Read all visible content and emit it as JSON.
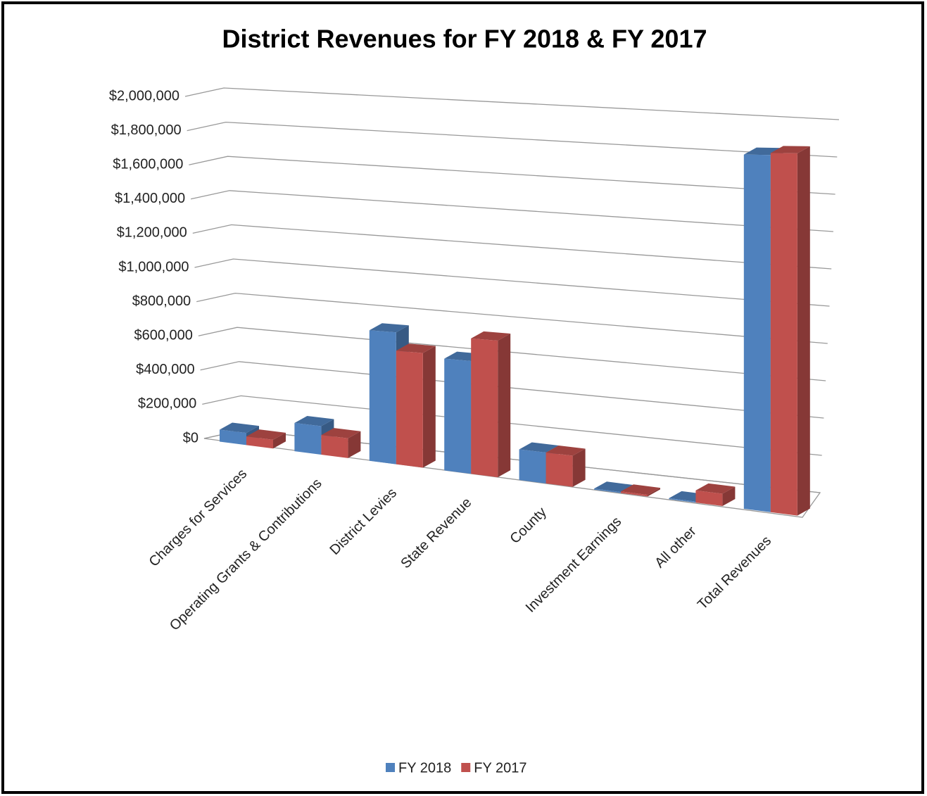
{
  "chart_data": {
    "type": "bar3d",
    "title": "District Revenues for FY 2018 & FY 2017",
    "categories": [
      "Charges for Services",
      "Operating Grants & Contributions",
      "District Levies",
      "State Revenue",
      "County",
      "Investment Earnings",
      "All  other",
      "Total Revenues"
    ],
    "series": [
      {
        "name": "FY 2018",
        "color": "#4f81bd",
        "values": [
          70000,
          160000,
          720000,
          600000,
          160000,
          5000,
          5000,
          1720000
        ]
      },
      {
        "name": "FY 2017",
        "color": "#c0504d",
        "values": [
          50000,
          110000,
          620000,
          720000,
          160000,
          8000,
          60000,
          1730000
        ]
      }
    ],
    "ylim": [
      0,
      2000000
    ],
    "yticks": [
      {
        "value": 0,
        "label": "$0"
      },
      {
        "value": 200000,
        "label": "$200,000"
      },
      {
        "value": 400000,
        "label": "$400,000"
      },
      {
        "value": 600000,
        "label": "$600,000"
      },
      {
        "value": 800000,
        "label": "$800,000"
      },
      {
        "value": 1000000,
        "label": "$1,000,000"
      },
      {
        "value": 1200000,
        "label": "$1,200,000"
      },
      {
        "value": 1400000,
        "label": "$1,400,000"
      },
      {
        "value": 1600000,
        "label": "$1,600,000"
      },
      {
        "value": 1800000,
        "label": "$1,800,000"
      },
      {
        "value": 2000000,
        "label": "$2,000,000"
      }
    ],
    "grid": true,
    "legend": "bottom"
  }
}
